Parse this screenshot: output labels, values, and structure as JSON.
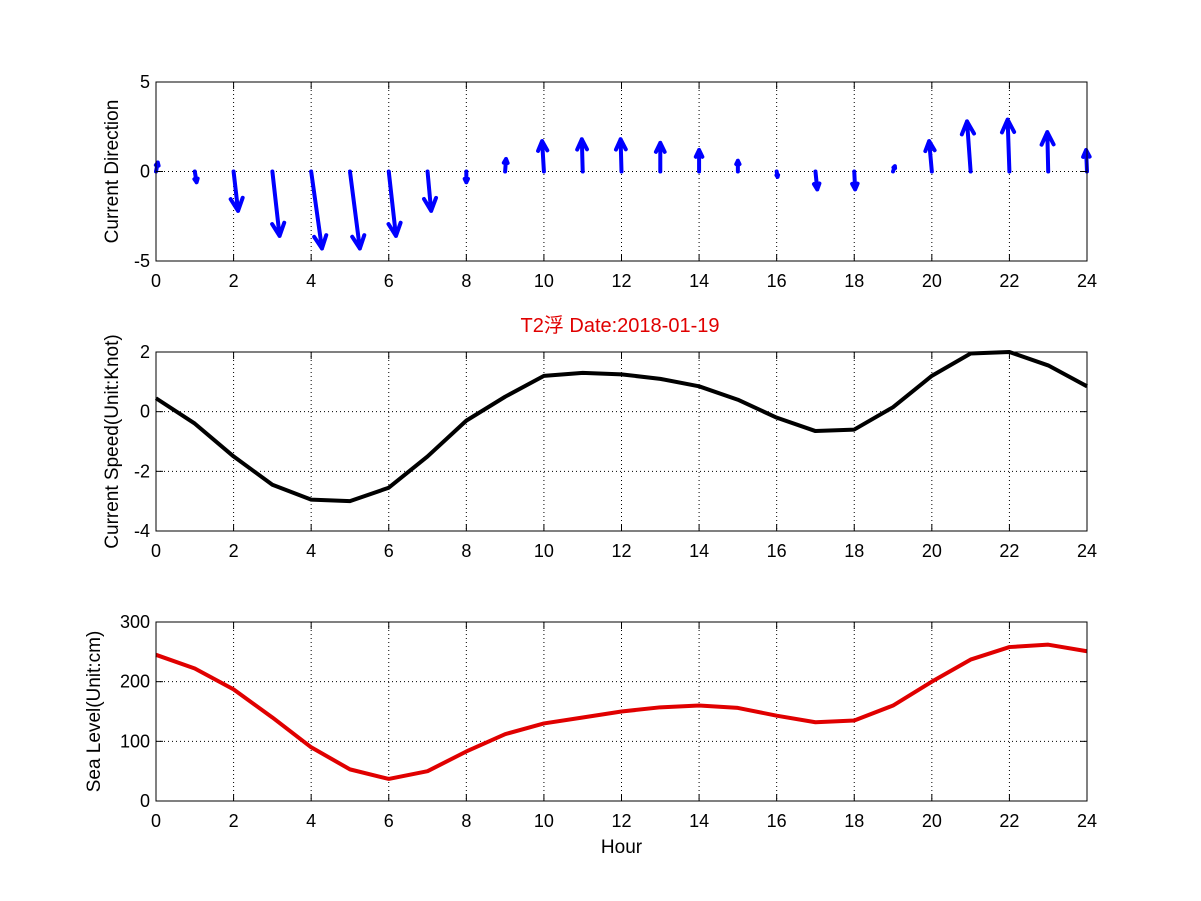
{
  "title": "T2浮    Date:2018-01-19",
  "colors": {
    "title": "#e00000",
    "direction": "#0000ff",
    "speed": "#000000",
    "sea_level": "#e00000"
  },
  "chart_data": [
    {
      "type": "quiver",
      "ylabel": "Current Direction",
      "xlim": [
        0,
        24
      ],
      "ylim": [
        -5,
        5
      ],
      "xticks": [
        "0",
        "2",
        "4",
        "6",
        "8",
        "10",
        "12",
        "14",
        "16",
        "18",
        "20",
        "22",
        "24"
      ],
      "yticks": [
        "-5",
        "0",
        "5"
      ],
      "grid": true,
      "series": [
        {
          "x": [
            0,
            1,
            2,
            3,
            4,
            5,
            6,
            7,
            8,
            9,
            10,
            11,
            12,
            13,
            14,
            15,
            16,
            17,
            18,
            19,
            20,
            21,
            22,
            23,
            24
          ],
          "u": [
            0.1,
            0.1,
            0.25,
            0.4,
            0.6,
            0.55,
            0.4,
            0.2,
            0,
            0.05,
            -0.1,
            -0.05,
            -0.05,
            0,
            0,
            0,
            0.05,
            0.1,
            0.05,
            0.1,
            -0.15,
            -0.2,
            -0.1,
            -0.05,
            -0.05
          ],
          "v": [
            0.5,
            -0.6,
            -2.2,
            -3.6,
            -4.3,
            -4.3,
            -3.6,
            -2.2,
            -0.6,
            0.7,
            1.7,
            1.8,
            1.8,
            1.6,
            1.2,
            0.6,
            -0.3,
            -1.0,
            -1.0,
            0.3,
            1.7,
            2.8,
            2.9,
            2.2,
            1.2
          ]
        }
      ]
    },
    {
      "type": "line",
      "ylabel": "Current Speed(Unit:Knot)",
      "xlim": [
        0,
        24
      ],
      "ylim": [
        -4,
        2
      ],
      "xticks": [
        "0",
        "2",
        "4",
        "6",
        "8",
        "10",
        "12",
        "14",
        "16",
        "18",
        "20",
        "22",
        "24"
      ],
      "yticks": [
        "-4",
        "-2",
        "0",
        "2"
      ],
      "grid": true,
      "series": [
        {
          "x": [
            0,
            1,
            2,
            3,
            4,
            5,
            6,
            7,
            8,
            9,
            10,
            11,
            12,
            13,
            14,
            15,
            16,
            17,
            18,
            19,
            20,
            21,
            22,
            23,
            24
          ],
          "y": [
            0.45,
            -0.4,
            -1.5,
            -2.45,
            -2.95,
            -3.0,
            -2.55,
            -1.5,
            -0.3,
            0.5,
            1.2,
            1.3,
            1.25,
            1.1,
            0.85,
            0.4,
            -0.2,
            -0.65,
            -0.6,
            0.15,
            1.2,
            1.95,
            2.0,
            1.55,
            0.85
          ]
        }
      ]
    },
    {
      "type": "line",
      "ylabel": "Sea Level(Unit:cm)",
      "xlabel": "Hour",
      "xlim": [
        0,
        24
      ],
      "ylim": [
        0,
        300
      ],
      "xticks": [
        "0",
        "2",
        "4",
        "6",
        "8",
        "10",
        "12",
        "14",
        "16",
        "18",
        "20",
        "22",
        "24"
      ],
      "yticks": [
        "0",
        "100",
        "200",
        "300"
      ],
      "grid": true,
      "series": [
        {
          "x": [
            0,
            1,
            2,
            3,
            4,
            5,
            6,
            7,
            8,
            9,
            10,
            11,
            12,
            13,
            14,
            15,
            16,
            17,
            18,
            19,
            20,
            21,
            22,
            23,
            24
          ],
          "y": [
            245,
            222,
            187,
            140,
            90,
            53,
            37,
            50,
            83,
            112,
            130,
            140,
            150,
            157,
            160,
            156,
            143,
            132,
            135,
            160,
            200,
            237,
            258,
            262,
            251
          ]
        }
      ]
    }
  ]
}
